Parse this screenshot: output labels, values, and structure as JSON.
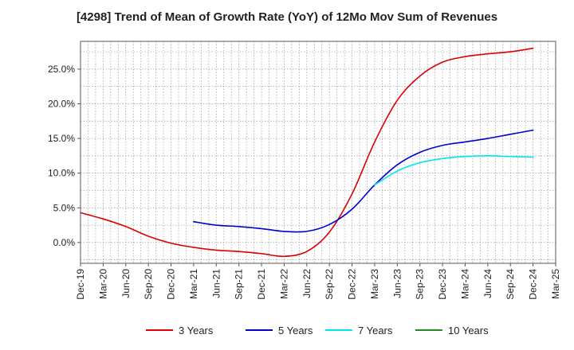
{
  "chart_data": {
    "type": "line",
    "title": "[4298]  Trend of Mean of Growth Rate (YoY) of 12Mo Mov Sum of Revenues",
    "xlabel": "",
    "ylabel": "",
    "x": [
      "Dec-19",
      "Mar-20",
      "Jun-20",
      "Sep-20",
      "Dec-20",
      "Mar-21",
      "Jun-21",
      "Sep-21",
      "Dec-21",
      "Mar-22",
      "Jun-22",
      "Sep-22",
      "Dec-22",
      "Mar-23",
      "Jun-23",
      "Sep-23",
      "Dec-23",
      "Mar-24",
      "Jun-24",
      "Sep-24",
      "Dec-24",
      "Mar-25"
    ],
    "ylim": [
      -3.0,
      29.0
    ],
    "yticks": [
      0,
      5,
      10,
      15,
      20,
      25
    ],
    "ytick_labels": [
      "0.0%",
      "5.0%",
      "10.0%",
      "15.0%",
      "20.0%",
      "25.0%"
    ],
    "grid": true,
    "legend_position": "bottom",
    "series": [
      {
        "name": "3 Years",
        "color": "#dd0000",
        "values": [
          4.3,
          3.4,
          2.3,
          0.9,
          -0.1,
          -0.7,
          -1.1,
          -1.3,
          -1.6,
          -2.0,
          -1.3,
          1.5,
          7.0,
          14.5,
          20.5,
          24.0,
          26.0,
          26.8,
          27.2,
          27.5,
          28.0,
          null
        ]
      },
      {
        "name": "5 Years",
        "color": "#0000cc",
        "values": [
          null,
          null,
          null,
          null,
          null,
          3.0,
          2.5,
          2.3,
          2.0,
          1.6,
          1.6,
          2.6,
          4.8,
          8.3,
          11.2,
          13.0,
          14.0,
          14.5,
          15.0,
          15.6,
          16.2,
          null
        ]
      },
      {
        "name": "7 Years",
        "color": "#00e5ee",
        "values": [
          null,
          null,
          null,
          null,
          null,
          null,
          null,
          null,
          null,
          null,
          null,
          null,
          null,
          8.3,
          10.3,
          11.5,
          12.1,
          12.4,
          12.5,
          12.4,
          12.3,
          null
        ]
      },
      {
        "name": "10 Years",
        "color": "#228b22",
        "values": [
          null,
          null,
          null,
          null,
          null,
          null,
          null,
          null,
          null,
          null,
          null,
          null,
          null,
          null,
          null,
          null,
          null,
          null,
          null,
          null,
          null,
          null
        ]
      }
    ]
  }
}
